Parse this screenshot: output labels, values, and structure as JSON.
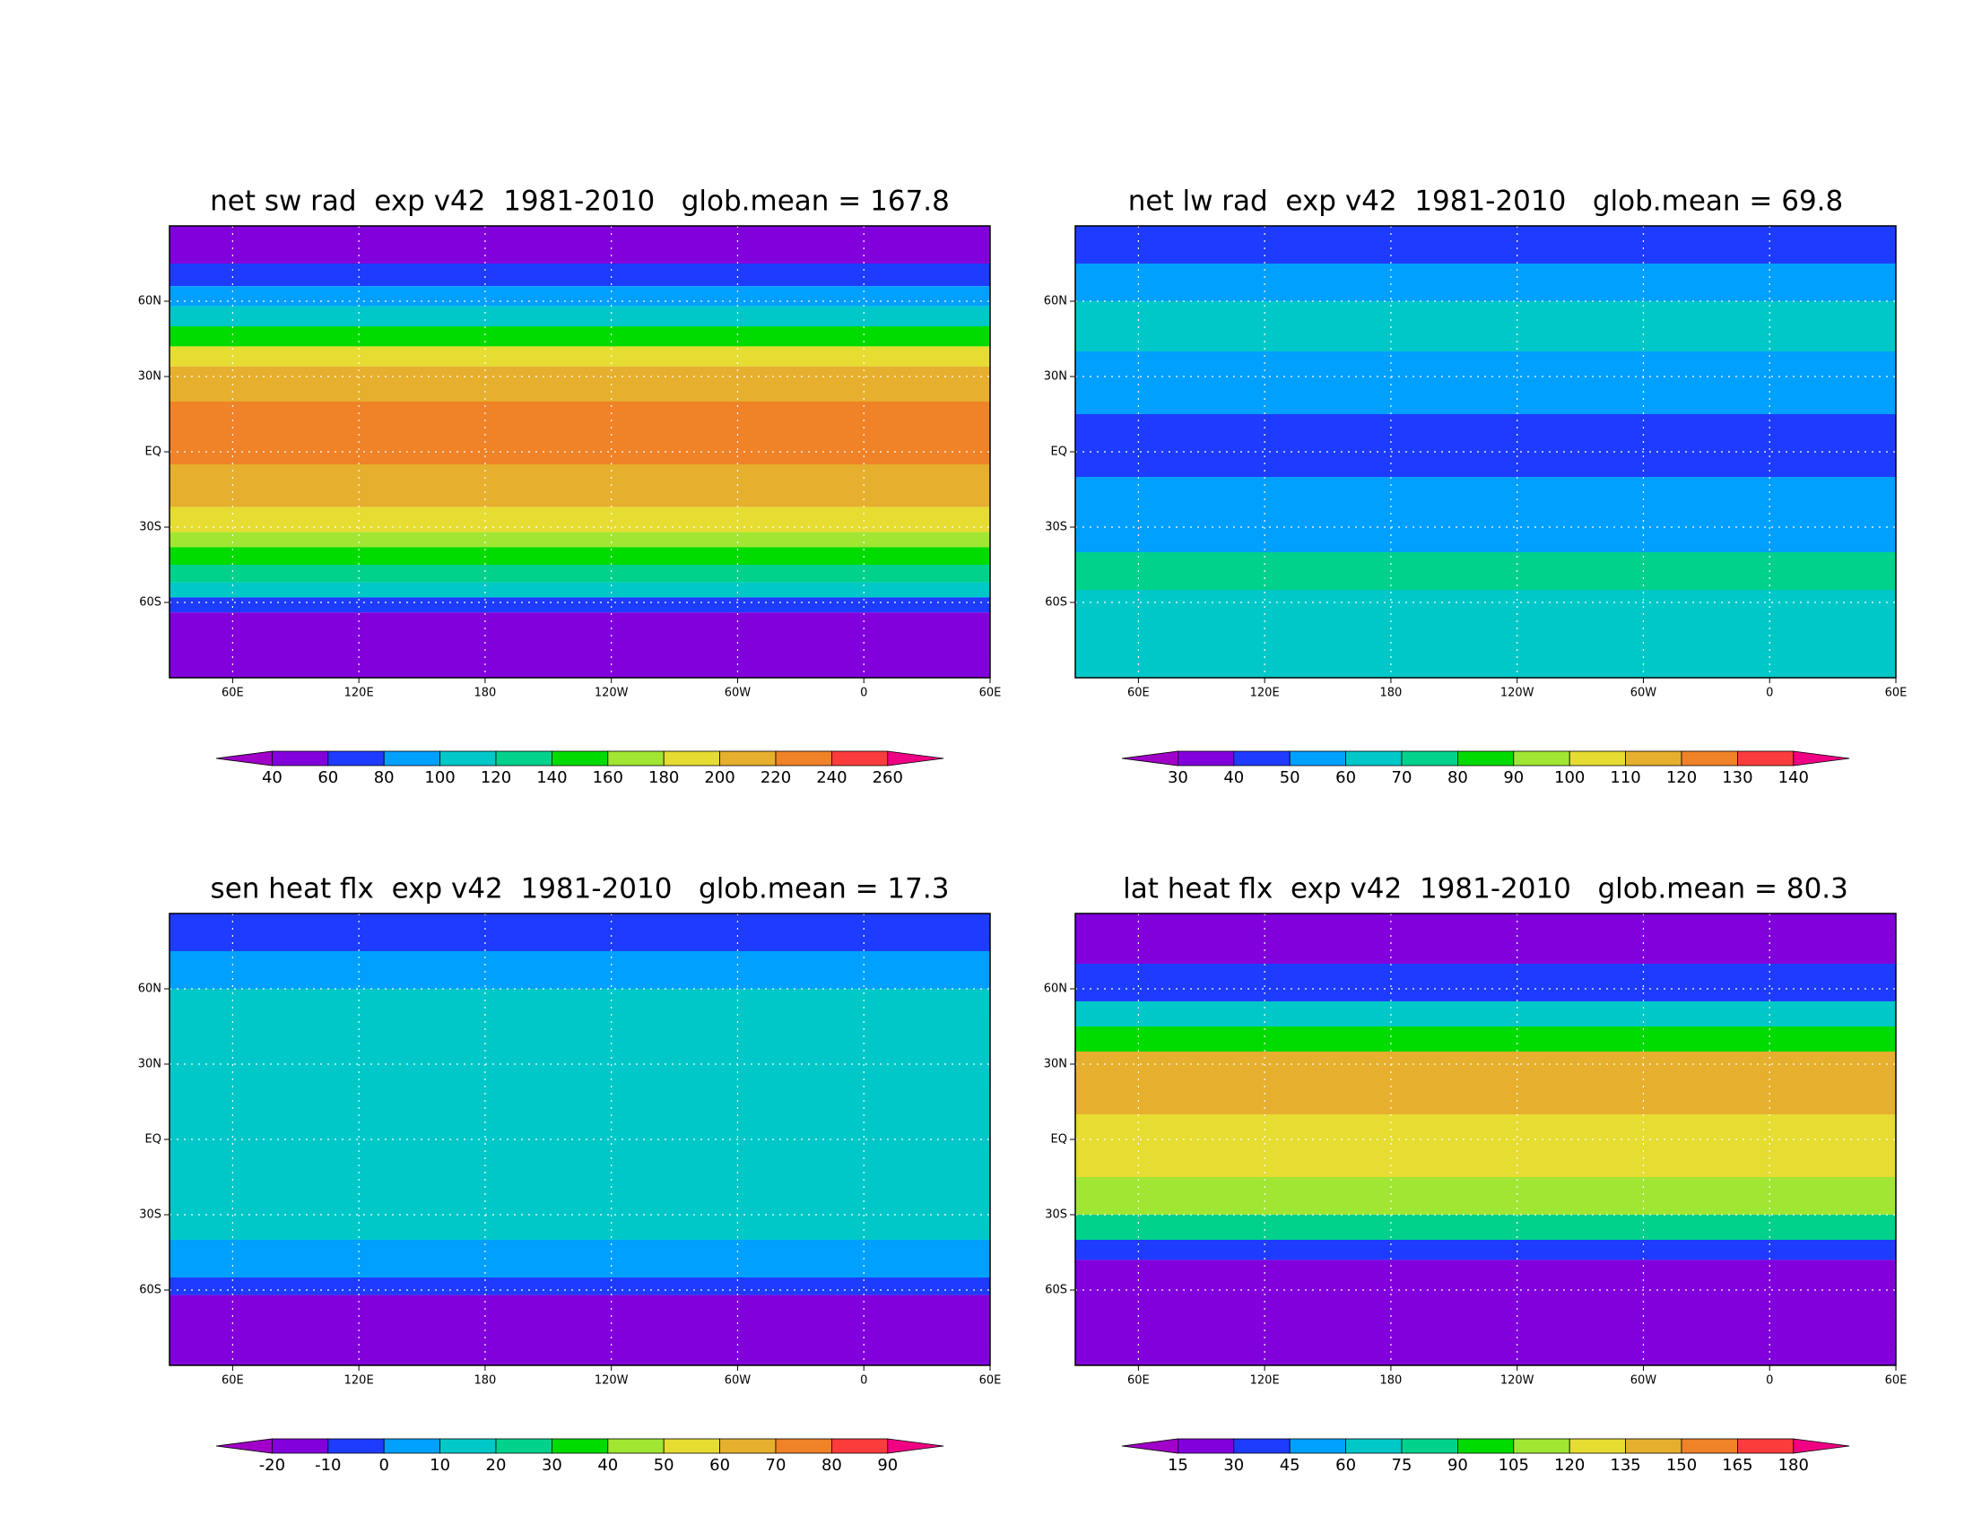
{
  "colorbar_colors": [
    "#a000c8",
    "#8200dc",
    "#1e3cff",
    "#00a0ff",
    "#00c8c8",
    "#00d28c",
    "#00dc00",
    "#a0e632",
    "#e6dc32",
    "#e6af2d",
    "#f08228",
    "#fa3c3c",
    "#f00082"
  ],
  "latlim": [
    -90,
    90
  ],
  "lonlim": [
    30,
    420
  ],
  "lat_ticks": [
    {
      "value": 60,
      "label": "60N"
    },
    {
      "value": 30,
      "label": "30N"
    },
    {
      "value": 0,
      "label": "EQ"
    },
    {
      "value": -30,
      "label": "30S"
    },
    {
      "value": -60,
      "label": "60S"
    }
  ],
  "lon_ticks": [
    {
      "value": 60,
      "label": "60E"
    },
    {
      "value": 120,
      "label": "120E"
    },
    {
      "value": 180,
      "label": "180"
    },
    {
      "value": 240,
      "label": "120W"
    },
    {
      "value": 300,
      "label": "60W"
    },
    {
      "value": 360,
      "label": "0"
    },
    {
      "value": 420,
      "label": "60E"
    }
  ],
  "panels": [
    {
      "title": "net sw rad  exp v42  1981-2010   glob.mean = 167.8",
      "colorbar_ticks": [
        40,
        60,
        80,
        100,
        120,
        140,
        160,
        180,
        200,
        220,
        240,
        260
      ]
    },
    {
      "title": "net lw rad  exp v42  1981-2010   glob.mean = 69.8",
      "colorbar_ticks": [
        30,
        40,
        50,
        60,
        70,
        80,
        90,
        100,
        110,
        120,
        130,
        140
      ]
    },
    {
      "title": "sen heat flx  exp v42  1981-2010   glob.mean = 17.3",
      "colorbar_ticks": [
        -20,
        -10,
        0,
        10,
        20,
        30,
        40,
        50,
        60,
        70,
        80,
        90
      ]
    },
    {
      "title": "lat heat flx  exp v42  1981-2010   glob.mean = 80.3",
      "colorbar_ticks": [
        15,
        30,
        45,
        60,
        75,
        90,
        105,
        120,
        135,
        150,
        165,
        180
      ]
    }
  ]
}
